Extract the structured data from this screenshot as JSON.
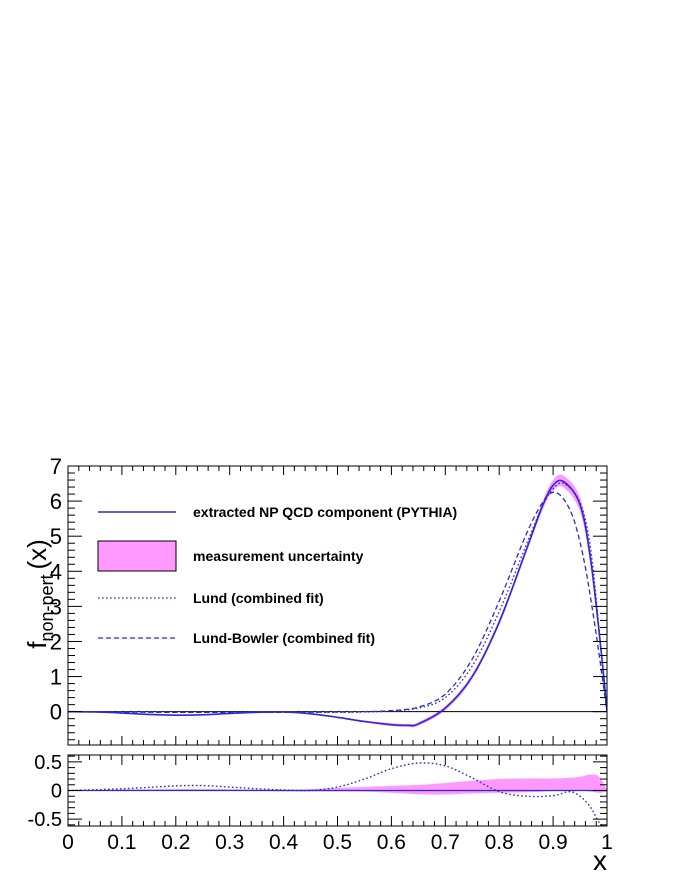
{
  "chart_data": [
    {
      "type": "line",
      "panel": "main",
      "ylabel": "f",
      "ylabel_sub": "non-pert.",
      "ylabel_suffix": "(x)",
      "xlim": [
        0,
        1
      ],
      "ylim": [
        -0.95,
        7
      ],
      "yticks": [
        0,
        1,
        2,
        3,
        4,
        5,
        6,
        7
      ],
      "yticklabels": [
        "0",
        "1",
        "2",
        "3",
        "4",
        "5",
        "6",
        "7"
      ],
      "legend": {
        "placement": "top-left",
        "entries": [
          {
            "label": "extracted NP QCD component (PYTHIA)",
            "style": "solid"
          },
          {
            "label": "measurement uncertainty",
            "style": "band"
          },
          {
            "label": "Lund (combined fit)",
            "style": "dotted"
          },
          {
            "label": "Lund-Bowler (combined fit)",
            "style": "dashed"
          }
        ]
      },
      "series": [
        {
          "name": "extracted NP QCD component (PYTHIA)",
          "style": "solid",
          "x": [
            0,
            0.05,
            0.1,
            0.15,
            0.2,
            0.25,
            0.3,
            0.35,
            0.4,
            0.45,
            0.5,
            0.55,
            0.6,
            0.63,
            0.65,
            0.7,
            0.75,
            0.8,
            0.85,
            0.88,
            0.9,
            0.92,
            0.95,
            0.97,
            0.99,
            1.0
          ],
          "y": [
            0,
            -0.01,
            -0.04,
            -0.08,
            -0.1,
            -0.09,
            -0.05,
            -0.02,
            -0.01,
            -0.06,
            -0.16,
            -0.28,
            -0.37,
            -0.39,
            -0.35,
            0.1,
            1.0,
            2.55,
            4.6,
            5.85,
            6.45,
            6.55,
            5.9,
            4.3,
            1.6,
            0.0
          ],
          "band": [
            0,
            0.005,
            0.005,
            0.005,
            0.005,
            0.005,
            0.005,
            0.005,
            0.01,
            0.015,
            0.02,
            0.03,
            0.04,
            0.045,
            0.05,
            0.06,
            0.07,
            0.08,
            0.09,
            0.12,
            0.15,
            0.17,
            0.2,
            0.22,
            0.15,
            0.02
          ]
        },
        {
          "name": "Lund (combined fit)",
          "style": "dotted",
          "x": [
            0,
            0.1,
            0.2,
            0.3,
            0.4,
            0.5,
            0.55,
            0.6,
            0.65,
            0.7,
            0.75,
            0.8,
            0.85,
            0.88,
            0.9,
            0.92,
            0.95,
            0.97,
            0.99,
            1.0
          ],
          "y": [
            0,
            -0.01,
            -0.02,
            -0.02,
            -0.02,
            -0.02,
            -0.01,
            0.02,
            0.1,
            0.4,
            1.3,
            2.85,
            4.75,
            5.85,
            6.35,
            6.5,
            5.95,
            4.6,
            1.6,
            0.0
          ]
        },
        {
          "name": "Lund-Bowler (combined fit)",
          "style": "dashed",
          "x": [
            0,
            0.1,
            0.2,
            0.3,
            0.4,
            0.5,
            0.55,
            0.6,
            0.65,
            0.7,
            0.75,
            0.8,
            0.85,
            0.88,
            0.9,
            0.92,
            0.94,
            0.96,
            0.98,
            1.0
          ],
          "y": [
            0,
            -0.01,
            -0.02,
            -0.02,
            -0.02,
            -0.01,
            0.0,
            0.03,
            0.13,
            0.5,
            1.5,
            3.15,
            5.05,
            5.95,
            6.25,
            6.05,
            5.4,
            4.1,
            2.2,
            0.0
          ]
        }
      ]
    },
    {
      "type": "line",
      "panel": "ratio",
      "xlabel": "x",
      "xlim": [
        0,
        1
      ],
      "ylim": [
        -0.62,
        0.62
      ],
      "xticks": [
        0,
        0.1,
        0.2,
        0.3,
        0.4,
        0.5,
        0.6,
        0.7,
        0.8,
        0.9,
        1
      ],
      "xticklabels": [
        "0",
        "0.1",
        "0.2",
        "0.3",
        "0.4",
        "0.5",
        "0.6",
        "0.7",
        "0.8",
        "0.9",
        "1"
      ],
      "yticks": [
        -0.5,
        0,
        0.5
      ],
      "yticklabels": [
        "-0.5",
        "0",
        "0.5"
      ],
      "series": [
        {
          "name": "measurement uncertainty",
          "style": "band",
          "x": [
            0,
            0.1,
            0.2,
            0.3,
            0.4,
            0.45,
            0.5,
            0.55,
            0.6,
            0.65,
            0.7,
            0.75,
            0.8,
            0.85,
            0.9,
            0.93,
            0.95,
            0.97,
            0.985,
            1.0
          ],
          "y": [
            0,
            0.01,
            0.015,
            0.01,
            0.0,
            0.005,
            0.015,
            0.02,
            0.02,
            0.015,
            0.03,
            0.06,
            0.08,
            0.09,
            0.1,
            0.11,
            0.12,
            0.13,
            0.1,
            0.0
          ],
          "band": [
            0.005,
            0.008,
            0.01,
            0.012,
            0.015,
            0.02,
            0.03,
            0.04,
            0.06,
            0.08,
            0.1,
            0.11,
            0.12,
            0.12,
            0.11,
            0.11,
            0.12,
            0.15,
            0.14,
            0.02
          ]
        },
        {
          "name": "Lund (combined fit)",
          "style": "dotted",
          "x": [
            0,
            0.1,
            0.2,
            0.25,
            0.3,
            0.35,
            0.4,
            0.45,
            0.5,
            0.55,
            0.6,
            0.65,
            0.7,
            0.75,
            0.8,
            0.85,
            0.9,
            0.93,
            0.95,
            0.97,
            0.985,
            1.0
          ],
          "y": [
            0,
            0.03,
            0.08,
            0.085,
            0.06,
            0.03,
            0.01,
            0.0,
            0.06,
            0.2,
            0.38,
            0.48,
            0.43,
            0.22,
            -0.02,
            -0.1,
            -0.09,
            -0.02,
            -0.1,
            -0.3,
            -0.55,
            -0.7
          ]
        }
      ]
    }
  ]
}
